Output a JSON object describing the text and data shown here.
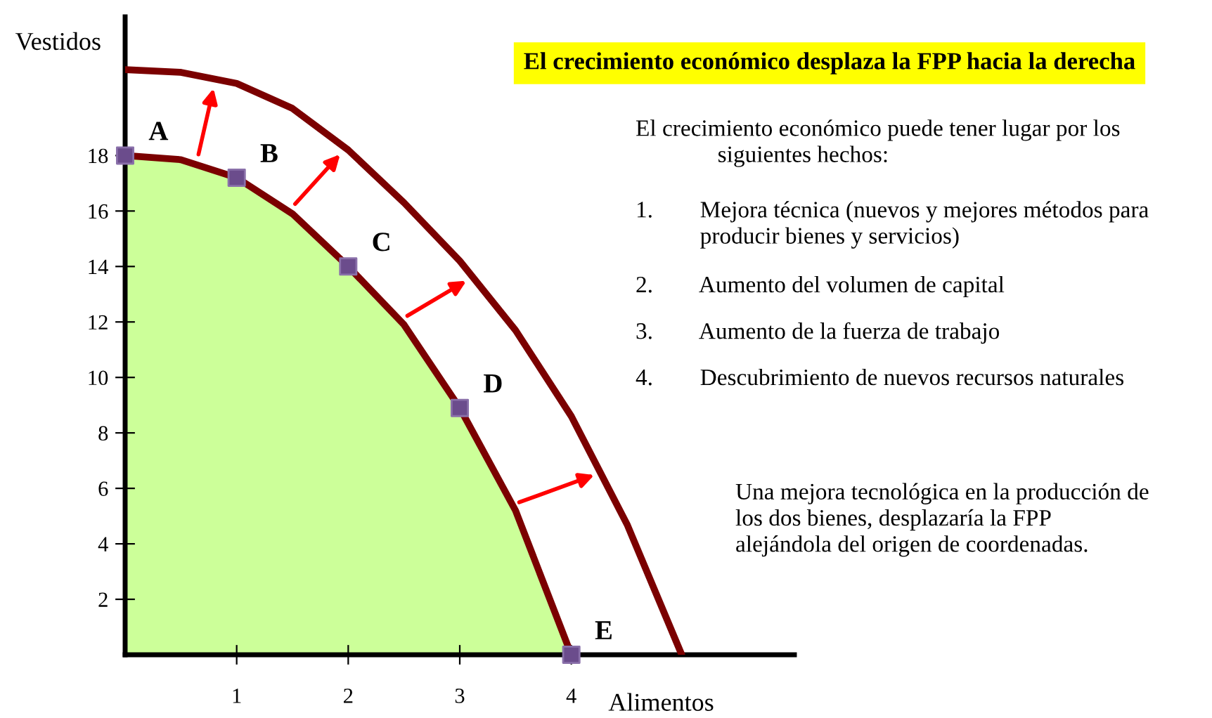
{
  "chart_data": {
    "type": "line",
    "title": "El crecimiento económico desplaza la FPP hacia la derecha",
    "xlabel": "Alimentos",
    "ylabel": "Vestidos",
    "x": [
      0,
      0.5,
      1,
      1.5,
      2,
      2.5,
      3,
      3.5,
      4
    ],
    "series": [
      {
        "color": "#7b0000",
        "x": [
          0,
          0.5,
          1,
          1.5,
          2,
          2.5,
          3,
          3.5,
          4,
          4.5,
          4.99
        ],
        "values": [
          21.1,
          21,
          20.6,
          19.7,
          18.2,
          16.3,
          14.2,
          11.7,
          8.6,
          4.7,
          0
        ]
      },
      {
        "type": "area",
        "color": "#ccff99",
        "values": [
          18,
          17.85,
          17.2,
          15.9,
          14,
          11.9,
          8.9,
          5.2,
          0
        ]
      },
      {
        "type": "scatter",
        "color": "#6b4c8c",
        "marker": "square",
        "x": [
          0,
          1,
          2,
          3,
          4
        ],
        "values": [
          18,
          17.2,
          14,
          8.9,
          0
        ]
      }
    ],
    "xlim": [
      0,
      6
    ],
    "ylim": [
      0,
      23
    ],
    "xticks": [
      1,
      2,
      3,
      4
    ],
    "yticks": [
      2,
      4,
      6,
      8,
      10,
      12,
      14,
      16,
      18
    ],
    "grid": false,
    "legend": false,
    "annotations": [
      {
        "text": "A",
        "x": 0,
        "y": 18
      },
      {
        "text": "B",
        "x": 1,
        "y": 17.2
      },
      {
        "text": "C",
        "x": 2,
        "y": 14
      },
      {
        "text": "D",
        "x": 3,
        "y": 8.9
      },
      {
        "text": "E",
        "x": 4,
        "y": 0
      },
      "El crecimiento económico puede tener lugar por los\n              siguientes hechos:",
      "1.        Mejora técnica (nuevos y mejores métodos para\n           producir bienes y servicios)",
      "2.        Aumento del volumen de capital",
      "3.        Aumento de la fuerza de trabajo",
      "4.        Descubrimiento de nuevos recursos naturales",
      "Una mejora tecnológica en la producción de\nlos dos bienes, desplazaría la FPP\nalejándola del origen de coordenadas."
    ]
  }
}
